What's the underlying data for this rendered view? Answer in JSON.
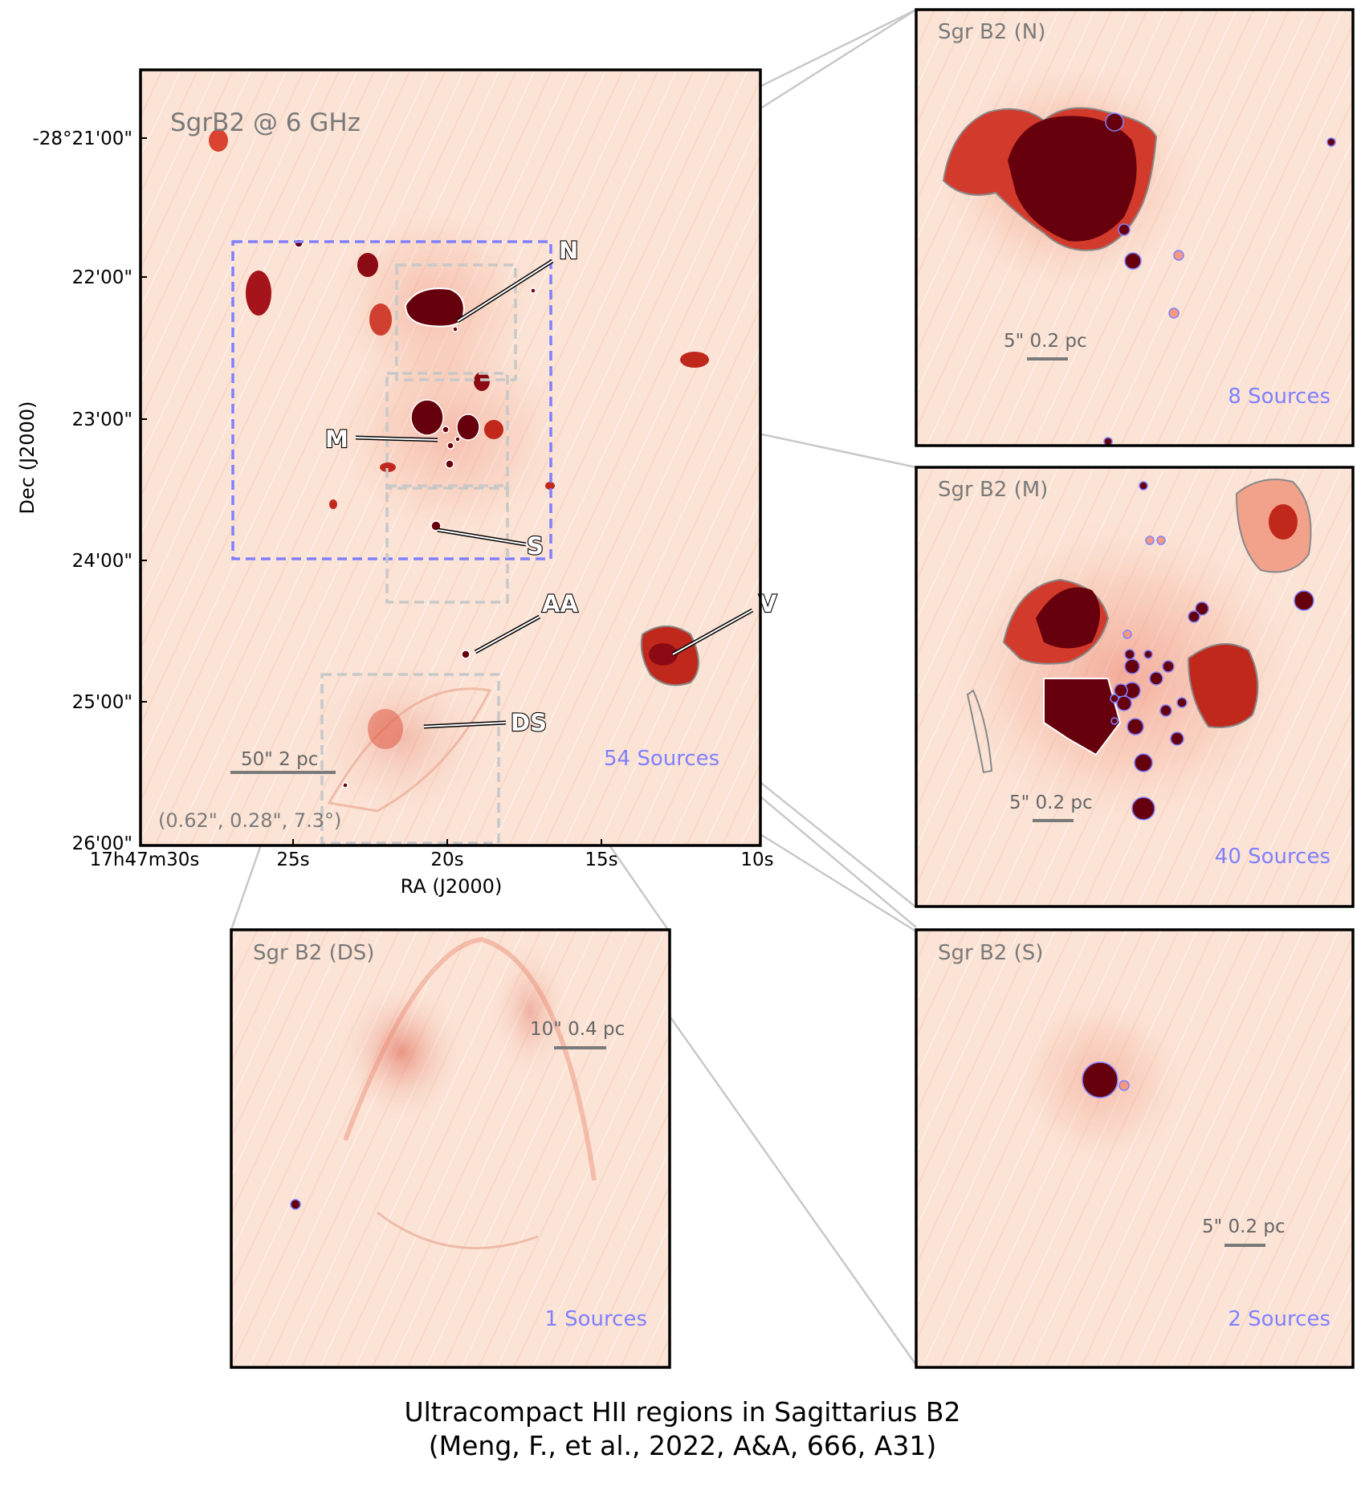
{
  "main_panel": {
    "title": "SgrB2 @ 6 GHz",
    "sources_label": "54 Sources",
    "scale_label": "50\" 2 pc",
    "beam_label": "(0.62\", 0.28\",  7.3°)",
    "xlabel": "RA (J2000)",
    "ylabel": "Dec (J2000)",
    "dec_ticks": [
      "-28°21'00\"",
      "22'00\"",
      "23'00\"",
      "24'00\"",
      "25'00\"",
      "26'00\""
    ],
    "ra_ticks": [
      "17h47m30s",
      "25s",
      "20s",
      "15s",
      "10s"
    ],
    "region_labels": [
      "N",
      "M",
      "S",
      "AA",
      "V",
      "DS"
    ]
  },
  "inset_n": {
    "title": "Sgr B2 (N)",
    "scale_label": "5\" 0.2 pc",
    "sources_label": "8 Sources"
  },
  "inset_m": {
    "title": "Sgr B2 (M)",
    "scale_label": "5\" 0.2 pc",
    "sources_label": "40 Sources"
  },
  "inset_s": {
    "title": "Sgr B2 (S)",
    "scale_label": "5\" 0.2 pc",
    "sources_label": "2 Sources"
  },
  "inset_ds": {
    "title": "Sgr B2 (DS)",
    "scale_label": "10\" 0.4 pc",
    "sources_label": "1 Sources"
  },
  "caption": {
    "line1": "Ultracompact HII regions in Sagittarius B2",
    "line2": "(Meng, F., et al., 2022, A&A, 666, A31)"
  },
  "colors": {
    "background": "#fbe4d6",
    "emission": "#c0281c",
    "core": "#67000d",
    "zoom_box_blue": "#8080ff",
    "zoom_box_gray": "#c8c8c8",
    "contour": "#888888",
    "sources_text": "#8080ff"
  },
  "icons": [
    "compact-source-icon",
    "scale-bar-icon"
  ]
}
